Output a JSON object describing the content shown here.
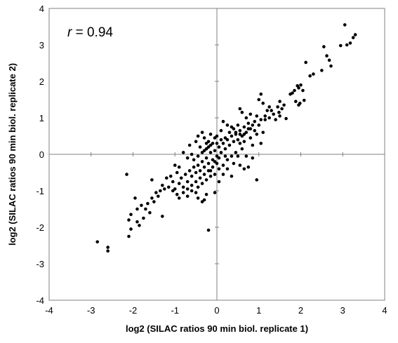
{
  "chart_data": {
    "type": "scatter",
    "title": "",
    "xlabel": "log2 (SILAC ratios 90 min biol. replicate 1)",
    "ylabel": "log2 (SILAC ratios 90 min biol. replicate 2)",
    "xlim": [
      -4,
      4
    ],
    "ylim": [
      -4,
      4
    ],
    "xticks": [
      -4,
      -3,
      -2,
      -1,
      0,
      1,
      2,
      3,
      4
    ],
    "yticks": [
      -4,
      -3,
      -2,
      -1,
      0,
      1,
      2,
      3,
      4
    ],
    "grid": false,
    "zero_lines": true,
    "annotation": {
      "r_symbol": "r",
      "r_text": " = 0.94"
    },
    "colors": {
      "points": "#000000",
      "zero_lines": "#808080",
      "frame": "#808080"
    },
    "points": [
      [
        3.05,
        3.55
      ],
      [
        3.3,
        3.28
      ],
      [
        3.25,
        3.2
      ],
      [
        3.18,
        3.05
      ],
      [
        3.1,
        3.0
      ],
      [
        2.95,
        2.98
      ],
      [
        2.55,
        2.95
      ],
      [
        2.62,
        2.7
      ],
      [
        2.68,
        2.58
      ],
      [
        2.72,
        2.42
      ],
      [
        2.5,
        2.3
      ],
      [
        2.12,
        2.52
      ],
      [
        2.3,
        2.2
      ],
      [
        2.22,
        2.15
      ],
      [
        2.0,
        1.9
      ],
      [
        1.95,
        1.82
      ],
      [
        2.05,
        1.75
      ],
      [
        1.85,
        1.75
      ],
      [
        1.8,
        1.68
      ],
      [
        1.75,
        1.65
      ],
      [
        1.92,
        1.88
      ],
      [
        2.08,
        1.48
      ],
      [
        1.98,
        1.4
      ],
      [
        1.95,
        1.35
      ],
      [
        1.88,
        1.45
      ],
      [
        1.6,
        1.35
      ],
      [
        1.55,
        1.25
      ],
      [
        1.48,
        1.15
      ],
      [
        1.65,
        0.98
      ],
      [
        1.5,
        1.05
      ],
      [
        1.05,
        1.65
      ],
      [
        1.0,
        1.5
      ],
      [
        1.1,
        1.4
      ],
      [
        1.25,
        1.3
      ],
      [
        1.2,
        1.2
      ],
      [
        1.35,
        1.1
      ],
      [
        0.95,
        1.05
      ],
      [
        1.15,
        0.95
      ],
      [
        1.4,
        0.95
      ],
      [
        0.9,
        0.9
      ],
      [
        0.55,
        1.25
      ],
      [
        0.6,
        1.15
      ],
      [
        0.8,
        1.1
      ],
      [
        0.7,
        1.0
      ],
      [
        0.15,
        0.9
      ],
      [
        0.25,
        0.8
      ],
      [
        0.35,
        0.75
      ],
      [
        0.45,
        0.6
      ],
      [
        0.55,
        0.55
      ],
      [
        0.85,
        0.25
      ],
      [
        0.95,
        0.55
      ],
      [
        1.1,
        0.6
      ],
      [
        0.8,
        0.45
      ],
      [
        0.65,
        0.35
      ],
      [
        1.05,
        0.3
      ],
      [
        0.7,
        -0.05
      ],
      [
        0.85,
        -0.1
      ],
      [
        0.5,
        -0.05
      ],
      [
        0.6,
        0.15
      ],
      [
        0.55,
        -0.3
      ],
      [
        0.65,
        -0.4
      ],
      [
        0.95,
        -0.7
      ],
      [
        0.75,
        -0.35
      ],
      [
        0.4,
        -0.25
      ],
      [
        0.15,
        -0.55
      ],
      [
        0.25,
        -0.4
      ],
      [
        0.35,
        -0.6
      ],
      [
        0.05,
        -0.75
      ],
      [
        -0.05,
        -1.05
      ],
      [
        -0.3,
        -1.25
      ],
      [
        -0.2,
        -2.08
      ],
      [
        -0.35,
        -1.3
      ],
      [
        -0.45,
        -1.2
      ],
      [
        -0.25,
        -1.1
      ],
      [
        -0.5,
        -1.05
      ],
      [
        -0.45,
        0.5
      ],
      [
        -0.35,
        0.6
      ],
      [
        -0.3,
        0.45
      ],
      [
        -0.15,
        0.55
      ],
      [
        -0.05,
        0.45
      ],
      [
        0.1,
        0.65
      ],
      [
        -0.25,
        0.3
      ],
      [
        -0.5,
        0.35
      ],
      [
        -0.15,
        0.25
      ],
      [
        -0.65,
        0.25
      ],
      [
        -0.8,
        0.05
      ],
      [
        -0.7,
        -0.1
      ],
      [
        -0.6,
        0.0
      ],
      [
        -0.9,
        -0.35
      ],
      [
        -1.0,
        -0.3
      ],
      [
        -0.95,
        -0.5
      ],
      [
        -1.1,
        -0.6
      ],
      [
        -1.05,
        -0.75
      ],
      [
        -1.2,
        -0.65
      ],
      [
        -1.3,
        -0.85
      ],
      [
        -1.15,
        -0.9
      ],
      [
        -1.25,
        -0.95
      ],
      [
        -1.35,
        -1.0
      ],
      [
        -1.45,
        -1.05
      ],
      [
        -1.4,
        -1.15
      ],
      [
        -1.55,
        -1.2
      ],
      [
        -1.5,
        -1.3
      ],
      [
        -1.65,
        -1.35
      ],
      [
        -1.8,
        -1.4
      ],
      [
        -1.7,
        -1.5
      ],
      [
        -1.6,
        -1.6
      ],
      [
        -1.75,
        -1.75
      ],
      [
        -1.9,
        -1.5
      ],
      [
        -2.05,
        -1.65
      ],
      [
        -2.1,
        -1.8
      ],
      [
        -1.9,
        -1.85
      ],
      [
        -1.85,
        -1.95
      ],
      [
        -2.05,
        -2.05
      ],
      [
        -2.1,
        -2.25
      ],
      [
        -2.15,
        -0.55
      ],
      [
        -1.95,
        -1.2
      ],
      [
        -1.55,
        -0.7
      ],
      [
        -1.3,
        -1.7
      ],
      [
        -2.6,
        -2.55
      ],
      [
        -2.6,
        -2.65
      ],
      [
        -2.85,
        -2.4
      ],
      [
        -1.0,
        -0.95
      ],
      [
        -0.9,
        -0.8
      ],
      [
        -0.85,
        -0.65
      ],
      [
        -0.75,
        -0.55
      ],
      [
        -0.7,
        -0.75
      ],
      [
        -0.8,
        -0.9
      ],
      [
        -0.65,
        -0.45
      ],
      [
        -0.6,
        -0.6
      ],
      [
        -0.55,
        -0.35
      ],
      [
        -0.5,
        -0.5
      ],
      [
        -0.45,
        -0.3
      ],
      [
        -0.4,
        -0.45
      ],
      [
        -0.35,
        -0.2
      ],
      [
        -0.3,
        -0.35
      ],
      [
        -0.25,
        -0.1
      ],
      [
        -0.2,
        -0.25
      ],
      [
        -0.15,
        0.05
      ],
      [
        -0.1,
        -0.15
      ],
      [
        -0.05,
        0.1
      ],
      [
        0.0,
        -0.05
      ],
      [
        0.05,
        0.2
      ],
      [
        0.1,
        0.05
      ],
      [
        0.15,
        0.3
      ],
      [
        0.2,
        0.15
      ],
      [
        0.25,
        0.4
      ],
      [
        0.3,
        0.25
      ],
      [
        0.35,
        0.5
      ],
      [
        0.4,
        0.35
      ],
      [
        0.45,
        0.55
      ],
      [
        0.5,
        0.4
      ],
      [
        0.55,
        0.65
      ],
      [
        0.6,
        0.5
      ],
      [
        0.65,
        0.75
      ],
      [
        0.7,
        0.6
      ],
      [
        0.75,
        0.85
      ],
      [
        0.8,
        0.7
      ],
      [
        -0.95,
        -1.1
      ],
      [
        -1.05,
        -1.0
      ],
      [
        -0.9,
        -1.2
      ],
      [
        -0.8,
        -1.05
      ],
      [
        -0.7,
        -0.95
      ],
      [
        -0.6,
        -0.85
      ],
      [
        -0.5,
        -0.75
      ],
      [
        -0.4,
        -0.65
      ],
      [
        -0.3,
        -0.55
      ],
      [
        -0.2,
        -0.45
      ],
      [
        -0.1,
        -0.35
      ],
      [
        0.0,
        -0.25
      ],
      [
        -0.3,
        0.1
      ],
      [
        -0.4,
        0.2
      ],
      [
        -0.2,
        0.35
      ],
      [
        0.0,
        0.3
      ],
      [
        0.2,
        0.45
      ],
      [
        0.3,
        0.6
      ],
      [
        0.4,
        0.7
      ],
      [
        0.5,
        0.8
      ],
      [
        -0.55,
        -0.15
      ],
      [
        -0.45,
        -0.05
      ],
      [
        -0.35,
        0.05
      ],
      [
        -0.25,
        0.15
      ],
      [
        -0.15,
        -0.45
      ],
      [
        -0.05,
        -0.55
      ],
      [
        0.05,
        -0.4
      ],
      [
        0.15,
        -0.3
      ],
      [
        0.25,
        -0.15
      ],
      [
        0.35,
        -0.05
      ],
      [
        0.45,
        0.05
      ],
      [
        0.2,
        -0.05
      ],
      [
        -0.6,
        -1.0
      ],
      [
        -0.7,
        -1.15
      ],
      [
        -0.45,
        -0.9
      ],
      [
        -0.35,
        -0.8
      ],
      [
        -0.25,
        -0.7
      ],
      [
        -0.15,
        -0.6
      ],
      [
        -0.05,
        -0.2
      ],
      [
        0.05,
        -0.1
      ],
      [
        0.1,
        0.4
      ],
      [
        0.0,
        0.5
      ],
      [
        -0.1,
        0.3
      ],
      [
        -0.2,
        0.2
      ],
      [
        0.55,
        0.3
      ],
      [
        0.65,
        0.55
      ],
      [
        0.75,
        0.7
      ],
      [
        0.85,
        0.8
      ],
      [
        0.9,
        0.65
      ],
      [
        1.0,
        0.8
      ],
      [
        1.05,
        0.95
      ],
      [
        1.15,
        1.05
      ],
      [
        1.25,
        1.0
      ],
      [
        1.3,
        1.2
      ],
      [
        1.45,
        1.3
      ],
      [
        1.5,
        1.45
      ]
    ]
  }
}
